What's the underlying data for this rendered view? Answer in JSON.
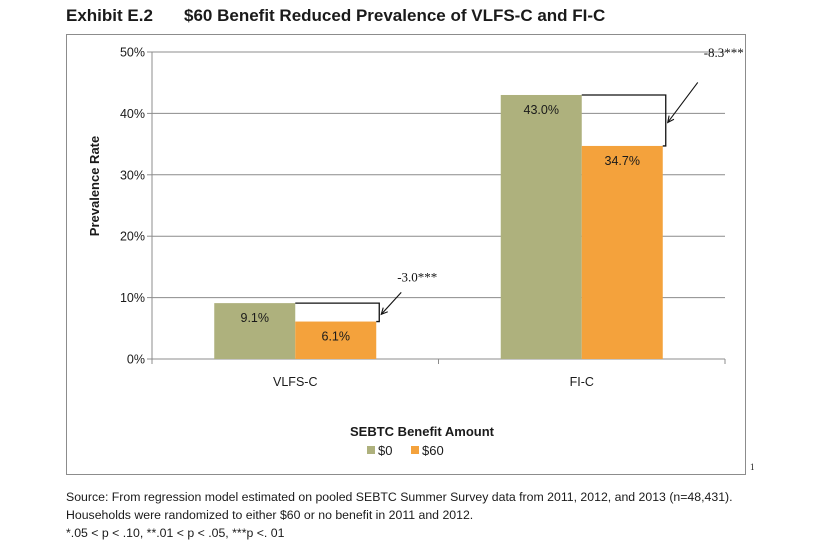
{
  "exhibit": {
    "label": "Exhibit E.2",
    "title": "$60 Benefit Reduced Prevalence of VLFS-C and FI-C"
  },
  "chart_data": {
    "type": "bar",
    "title": "$60 Benefit Reduced Prevalence of VLFS-C and FI-C",
    "xlabel": "SEBTC Benefit Amount",
    "ylabel": "Prevalence Rate",
    "ylim": [
      0,
      50
    ],
    "yticks": [
      "0%",
      "10%",
      "20%",
      "30%",
      "40%",
      "50%"
    ],
    "ytick_values": [
      0,
      10,
      20,
      30,
      40,
      50
    ],
    "categories": [
      "VLFS-C",
      "FI-C"
    ],
    "series": [
      {
        "name": "$0",
        "values": [
          9.1,
          43.0
        ],
        "labels": [
          "9.1%",
          "43.0%"
        ],
        "color": "#aeb17d"
      },
      {
        "name": "$60",
        "values": [
          6.1,
          34.7
        ],
        "labels": [
          "6.1%",
          "34.7%"
        ],
        "color": "#f4a23c"
      }
    ],
    "annotations": [
      "-3.0***",
      "-8.3***"
    ],
    "legend": "bottom",
    "grid": true
  },
  "footnote_marker": "1",
  "source": {
    "lines": [
      "Source: From regression model estimated on pooled SEBTC Summer Survey data from 2011, 2012, and 2013 (n=48,431).",
      "Households were randomized to either $60 or no benefit in 2011 and 2012.",
      "*.05 < p < .10, **.01 < p < .05, ***p <. 01"
    ]
  }
}
